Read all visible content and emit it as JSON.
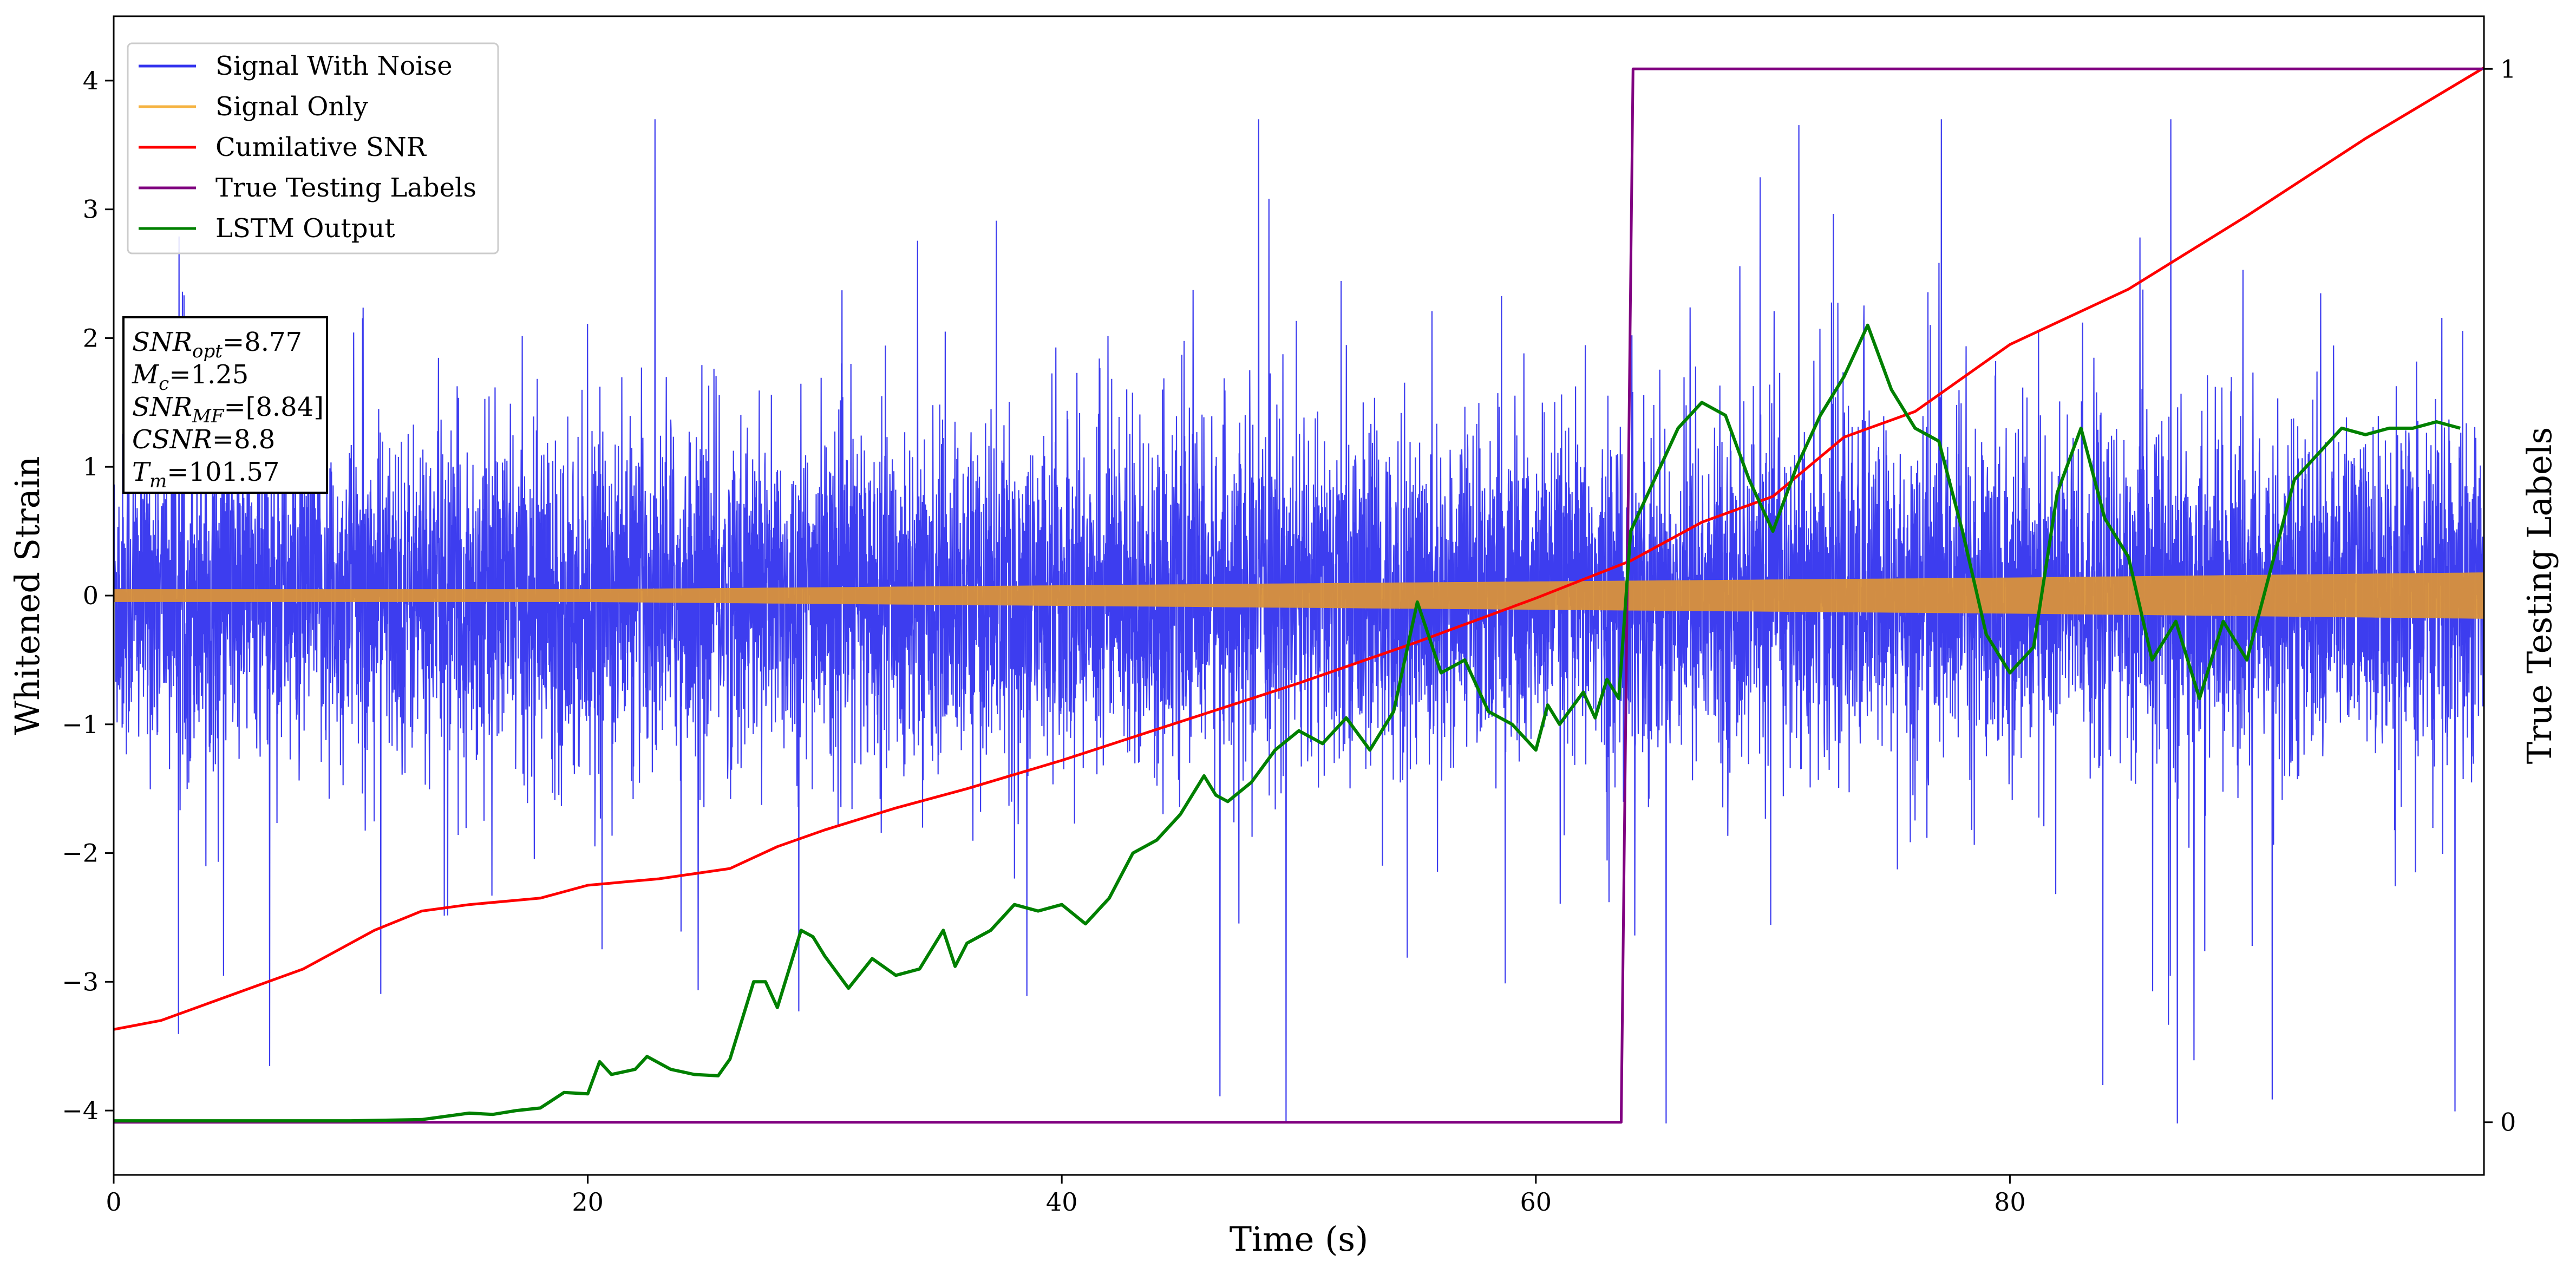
{
  "chart_data": {
    "type": "line",
    "xlabel": "Time (s)",
    "ylabel": "Whitened Strain",
    "y2label": "True Testing Labels",
    "xlim": [
      0,
      100
    ],
    "ylim": [
      -4.5,
      4.5
    ],
    "y2lim": [
      -0.05,
      1.05
    ],
    "xticks": [
      0,
      20,
      40,
      60,
      80
    ],
    "yticks": [
      -4,
      -3,
      -2,
      -1,
      0,
      1,
      2,
      3,
      4
    ],
    "y2ticks": [
      0,
      1
    ],
    "legend_position": "top-left",
    "grid": false,
    "series": [
      {
        "name": "Signal With Noise",
        "color": "#3333ee",
        "axis": "left",
        "style": "dense-noise",
        "typical_range": [
          -1.5,
          1.5
        ],
        "peak_range": [
          -4.1,
          3.7
        ]
      },
      {
        "name": "Signal Only",
        "color": "#f5b342",
        "axis": "left",
        "style": "chirp-band",
        "envelope": [
          {
            "x": 0,
            "amp": 0.05
          },
          {
            "x": 20,
            "amp": 0.05
          },
          {
            "x": 40,
            "amp": 0.08
          },
          {
            "x": 60,
            "amp": 0.11
          },
          {
            "x": 80,
            "amp": 0.14
          },
          {
            "x": 100,
            "amp": 0.18
          }
        ]
      },
      {
        "name": "Cumilative SNR",
        "color": "#ff0000",
        "axis": "left",
        "x": [
          0,
          2,
          5,
          8,
          11,
          13,
          15,
          18,
          20,
          23,
          26,
          28,
          30,
          33,
          36,
          40,
          45,
          50,
          55,
          60,
          64,
          67,
          70,
          73,
          76,
          80,
          85,
          90,
          95,
          100
        ],
        "y": [
          -3.37,
          -3.3,
          -3.1,
          -2.9,
          -2.6,
          -2.45,
          -2.4,
          -2.35,
          -2.25,
          -2.2,
          -2.12,
          -1.95,
          -1.82,
          -1.65,
          -1.5,
          -1.28,
          -0.98,
          -0.68,
          -0.36,
          -0.02,
          0.27,
          0.57,
          0.77,
          1.23,
          1.43,
          1.95,
          2.38,
          2.95,
          3.55,
          4.1
        ]
      },
      {
        "name": "True Testing Labels",
        "color": "#800080",
        "axis": "right",
        "x": [
          0,
          63.6,
          64.1,
          100
        ],
        "y": [
          0,
          0,
          1,
          1
        ]
      },
      {
        "name": "LSTM Output",
        "color": "#008000",
        "axis": "left",
        "x": [
          0,
          10,
          13,
          15,
          16,
          17,
          18,
          19,
          20,
          20.5,
          21,
          22,
          22.5,
          23.5,
          24.5,
          25.5,
          26,
          27,
          27.5,
          28,
          29,
          29.5,
          30,
          31,
          32,
          33,
          34,
          35,
          35.5,
          36,
          37,
          38,
          39,
          40,
          41,
          42,
          43,
          44,
          45,
          46,
          46.5,
          47,
          48,
          49,
          50,
          51,
          52,
          53,
          54,
          55,
          56,
          57,
          58,
          59,
          60,
          60.5,
          61,
          62,
          62.5,
          63,
          63.5,
          64,
          65,
          66,
          67,
          68,
          69,
          70,
          71,
          72,
          73,
          74,
          75,
          76,
          77,
          78,
          79,
          80,
          81,
          82,
          83,
          84,
          85,
          86,
          87,
          88,
          89,
          90,
          91,
          92,
          93,
          94,
          95,
          96,
          97,
          98,
          99
        ],
        "y": [
          -4.08,
          -4.08,
          -4.07,
          -4.02,
          -4.03,
          -4.0,
          -3.98,
          -3.86,
          -3.87,
          -3.62,
          -3.72,
          -3.68,
          -3.58,
          -3.68,
          -3.72,
          -3.73,
          -3.6,
          -3.0,
          -3.0,
          -3.2,
          -2.6,
          -2.65,
          -2.8,
          -3.05,
          -2.82,
          -2.95,
          -2.9,
          -2.6,
          -2.88,
          -2.7,
          -2.6,
          -2.4,
          -2.45,
          -2.4,
          -2.55,
          -2.35,
          -2.0,
          -1.9,
          -1.7,
          -1.4,
          -1.55,
          -1.6,
          -1.45,
          -1.2,
          -1.05,
          -1.15,
          -0.95,
          -1.2,
          -0.9,
          -0.05,
          -0.6,
          -0.5,
          -0.9,
          -1.0,
          -1.2,
          -0.85,
          -1.0,
          -0.75,
          -0.95,
          -0.65,
          -0.8,
          0.5,
          0.9,
          1.3,
          1.5,
          1.4,
          0.9,
          0.5,
          1.0,
          1.4,
          1.7,
          2.1,
          1.6,
          1.3,
          1.2,
          0.5,
          -0.3,
          -0.6,
          -0.4,
          0.8,
          1.3,
          0.6,
          0.3,
          -0.5,
          -0.2,
          -0.8,
          -0.2,
          -0.5,
          0.2,
          0.9,
          1.1,
          1.3,
          1.25,
          1.3,
          1.3,
          1.35,
          1.3
        ]
      }
    ],
    "annotation": {
      "lines": [
        {
          "var": "SNR",
          "sub": "opt",
          "value": "=8.77"
        },
        {
          "var": "M",
          "sub": "c",
          "value": "=1.25"
        },
        {
          "var": "SNR",
          "sub": "MF",
          "value": "=[8.84]"
        },
        {
          "var": "CSNR",
          "sub": "",
          "value": "=8.8"
        },
        {
          "var": "T",
          "sub": "m",
          "value": "=101.57"
        }
      ]
    }
  }
}
